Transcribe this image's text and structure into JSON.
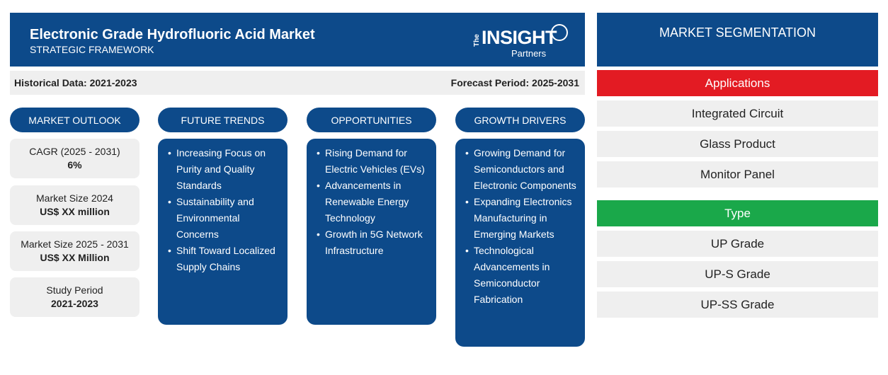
{
  "header": {
    "title": "Electronic Grade Hydrofluoric Acid Market",
    "subtitle": "STRATEGIC FRAMEWORK",
    "logo": {
      "the": "The",
      "main": "INSIGHT",
      "partners": "Partners"
    }
  },
  "period": {
    "historical": "Historical Data: 2021-2023",
    "forecast": "Forecast Period: 2025-2031"
  },
  "columns": {
    "outlook": "MARKET OUTLOOK",
    "trends": "FUTURE TRENDS",
    "opportunities": "OPPORTUNITIES",
    "drivers": "GROWTH DRIVERS"
  },
  "outlook_cards": [
    {
      "label": "CAGR (2025 - 2031)",
      "value": "6%"
    },
    {
      "label": "Market Size 2024",
      "value": "US$ XX million"
    },
    {
      "label": "Market Size 2025 - 2031",
      "value": "US$ XX Million"
    },
    {
      "label": "Study Period",
      "value": "2021-2023"
    }
  ],
  "future_trends": [
    "Increasing Focus on Purity and Quality Standards",
    "Sustainability and Environmental Concerns",
    "Shift Toward Localized Supply Chains"
  ],
  "opportunities": [
    "Rising Demand for Electric Vehicles (EVs)",
    "Advancements in Renewable Energy Technology",
    "Growth in 5G Network Infrastructure"
  ],
  "growth_drivers": [
    "Growing Demand for Semiconductors and Electronic Components",
    "Expanding Electronics Manufacturing in Emerging Markets",
    "Technological Advancements in Semiconductor Fabrication"
  ],
  "segmentation": {
    "title": "MARKET SEGMENTATION",
    "categories": [
      {
        "name": "Applications",
        "color": "#e31b23",
        "items": [
          "Integrated Circuit",
          "Glass Product",
          "Monitor Panel"
        ]
      },
      {
        "name": "Type",
        "color": "#1aa84a",
        "items": [
          "UP Grade",
          "UP-S Grade",
          "UP-SS Grade"
        ]
      }
    ]
  },
  "colors": {
    "primary": "#0d4a8a",
    "panel": "#efefef"
  }
}
